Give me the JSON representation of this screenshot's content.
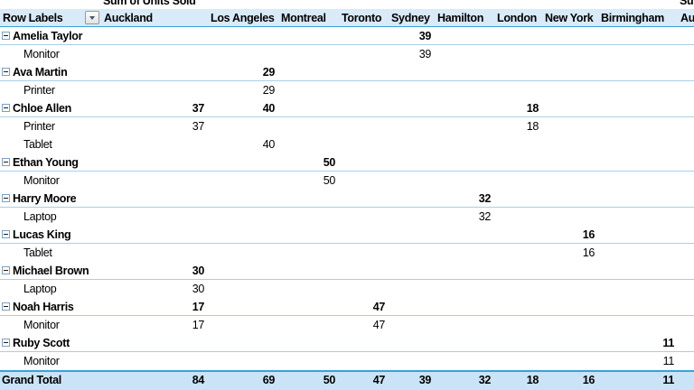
{
  "title_row": {
    "left": "Sum of Units Sold",
    "right": "Su"
  },
  "header": {
    "row_labels": "Row Labels",
    "filter_icon": "dropdown-arrow-icon",
    "columns": [
      "Auckland",
      "Los Angeles",
      "Montreal",
      "Toronto",
      "Sydney",
      "Hamilton",
      "London",
      "New York",
      "Birmingham",
      "Au"
    ]
  },
  "rows": [
    {
      "label": "Amelia Taylor",
      "type": "group",
      "values": [
        "",
        "",
        "",
        "",
        "39",
        "",
        "",
        "",
        "",
        ""
      ]
    },
    {
      "label": "Monitor",
      "type": "detail",
      "values": [
        "",
        "",
        "",
        "",
        "39",
        "",
        "",
        "",
        "",
        ""
      ]
    },
    {
      "label": "Ava Martin",
      "type": "group",
      "values": [
        "",
        "29",
        "",
        "",
        "",
        "",
        "",
        "",
        "",
        ""
      ]
    },
    {
      "label": "Printer",
      "type": "detail",
      "values": [
        "",
        "29",
        "",
        "",
        "",
        "",
        "",
        "",
        "",
        ""
      ]
    },
    {
      "label": "Chloe Allen",
      "type": "group",
      "values": [
        "37",
        "40",
        "",
        "",
        "",
        "",
        "18",
        "",
        "",
        ""
      ]
    },
    {
      "label": "Printer",
      "type": "detail",
      "values": [
        "37",
        "",
        "",
        "",
        "",
        "",
        "18",
        "",
        "",
        ""
      ]
    },
    {
      "label": "Tablet",
      "type": "detail",
      "values": [
        "",
        "40",
        "",
        "",
        "",
        "",
        "",
        "",
        "",
        ""
      ]
    },
    {
      "label": "Ethan Young",
      "type": "group",
      "values": [
        "",
        "",
        "50",
        "",
        "",
        "",
        "",
        "",
        "",
        ""
      ]
    },
    {
      "label": "Monitor",
      "type": "detail",
      "values": [
        "",
        "",
        "50",
        "",
        "",
        "",
        "",
        "",
        "",
        ""
      ]
    },
    {
      "label": "Harry Moore",
      "type": "group",
      "values": [
        "",
        "",
        "",
        "",
        "",
        "32",
        "",
        "",
        "",
        ""
      ]
    },
    {
      "label": "Laptop",
      "type": "detail",
      "values": [
        "",
        "",
        "",
        "",
        "",
        "32",
        "",
        "",
        "",
        ""
      ]
    },
    {
      "label": "Lucas King",
      "type": "group",
      "values": [
        "",
        "",
        "",
        "",
        "",
        "",
        "",
        "16",
        "",
        ""
      ]
    },
    {
      "label": "Tablet",
      "type": "detail",
      "values": [
        "",
        "",
        "",
        "",
        "",
        "",
        "",
        "16",
        "",
        ""
      ]
    },
    {
      "label": "Michael Brown",
      "type": "group",
      "values": [
        "30",
        "",
        "",
        "",
        "",
        "",
        "",
        "",
        "",
        ""
      ]
    },
    {
      "label": "Laptop",
      "type": "detail",
      "values": [
        "30",
        "",
        "",
        "",
        "",
        "",
        "",
        "",
        "",
        ""
      ]
    },
    {
      "label": "Noah Harris",
      "type": "group",
      "values": [
        "17",
        "",
        "",
        "47",
        "",
        "",
        "",
        "",
        "",
        ""
      ]
    },
    {
      "label": "Monitor",
      "type": "detail",
      "values": [
        "17",
        "",
        "",
        "47",
        "",
        "",
        "",
        "",
        "",
        ""
      ]
    },
    {
      "label": "Ruby Scott",
      "type": "group",
      "values": [
        "",
        "",
        "",
        "",
        "",
        "",
        "",
        "",
        "11",
        ""
      ]
    },
    {
      "label": "Monitor",
      "type": "detail",
      "values": [
        "",
        "",
        "",
        "",
        "",
        "",
        "",
        "",
        "11",
        ""
      ]
    }
  ],
  "grand_total": {
    "label": "Grand Total",
    "values": [
      "84",
      "69",
      "50",
      "47",
      "39",
      "32",
      "18",
      "16",
      "11",
      ""
    ]
  },
  "colors": {
    "header_fill": "#d9eaf8",
    "grand_total_fill": "#cbe3f6",
    "row_border": "#a6ceec",
    "accent_border": "#3d9fd8"
  }
}
